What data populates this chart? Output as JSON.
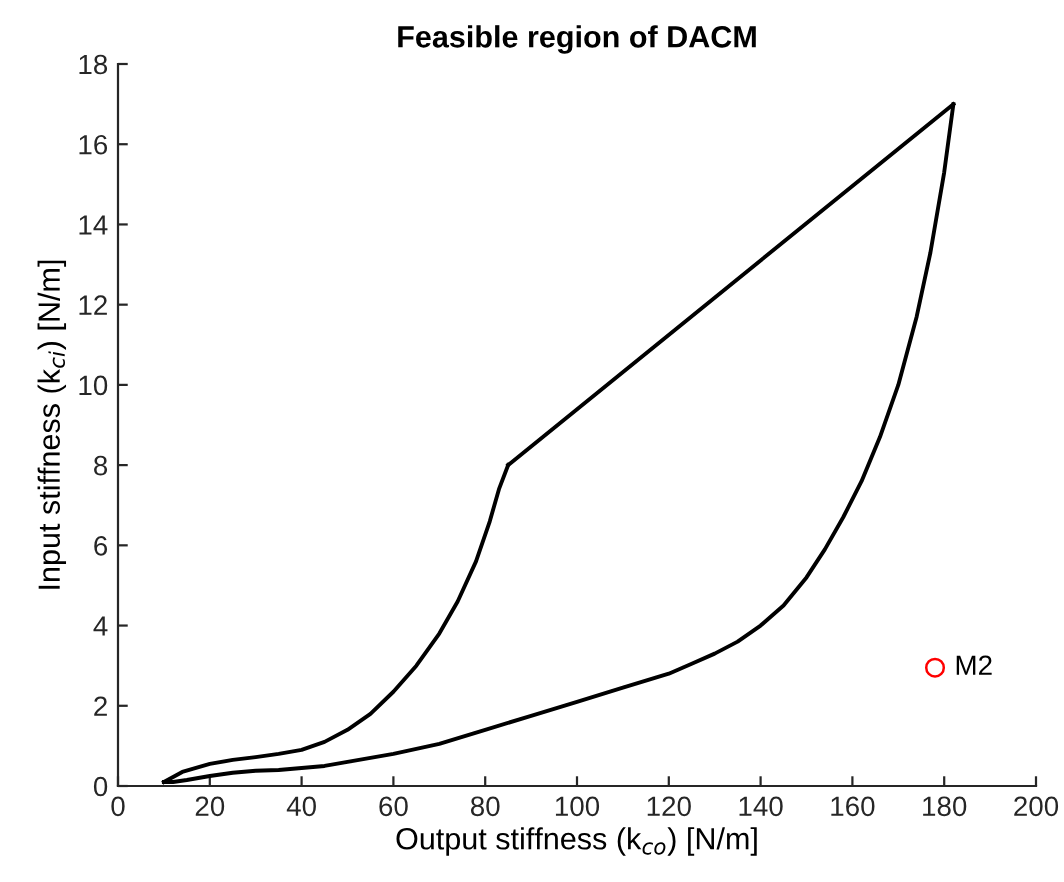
{
  "chart_data": {
    "type": "line",
    "title": "Feasible region of DACM",
    "xlabel": "Output stiffness (k$_{co}$) [N/m]",
    "ylabel": "Input stiffness (k$_{ci}$) [N/m]",
    "xlim": [
      0,
      200
    ],
    "ylim": [
      0,
      18
    ],
    "xticks": [
      0,
      20,
      40,
      60,
      80,
      100,
      120,
      140,
      160,
      180,
      200
    ],
    "yticks": [
      0,
      2,
      4,
      6,
      8,
      10,
      12,
      14,
      16,
      18
    ],
    "series": [
      {
        "color": "#000000",
        "x": [
          10,
          14,
          20,
          25,
          30,
          35,
          40,
          45,
          50,
          55,
          60,
          65,
          70,
          74,
          78,
          81,
          83,
          85
        ],
        "values": [
          0.1,
          0.35,
          0.55,
          0.65,
          0.72,
          0.8,
          0.9,
          1.1,
          1.4,
          1.8,
          2.35,
          3.0,
          3.8,
          4.6,
          5.6,
          6.6,
          7.4,
          8.0
        ]
      },
      {
        "color": "#000000",
        "x": [
          85,
          182
        ],
        "values": [
          8.0,
          17.0
        ]
      },
      {
        "color": "#000000",
        "x": [
          10,
          12,
          15,
          20,
          25,
          30,
          35,
          40,
          45,
          50,
          60,
          70,
          80,
          90,
          100,
          110,
          120,
          125,
          130,
          135,
          140,
          145,
          150,
          154,
          158,
          162,
          166,
          170,
          174,
          177,
          180,
          182
        ],
        "values": [
          0.1,
          0.1,
          0.15,
          0.25,
          0.33,
          0.38,
          0.4,
          0.45,
          0.5,
          0.6,
          0.8,
          1.05,
          1.4,
          1.75,
          2.1,
          2.45,
          2.8,
          3.05,
          3.3,
          3.6,
          4.0,
          4.5,
          5.2,
          5.9,
          6.7,
          7.6,
          8.7,
          10.0,
          11.7,
          13.3,
          15.3,
          17.0
        ]
      },
      {
        "type": "scatter",
        "name": "M2",
        "color": "#ff0000",
        "marker": "circle",
        "x": [
          178
        ],
        "values": [
          2.95
        ]
      }
    ]
  }
}
